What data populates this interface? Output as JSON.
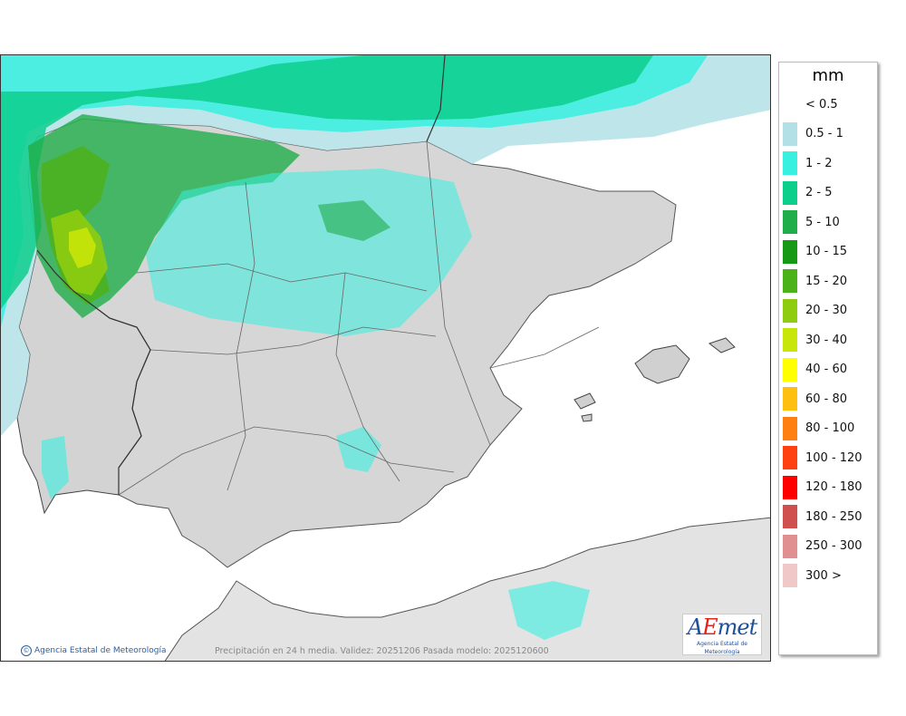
{
  "map": {
    "credit": "Agencia Estatal de Meteorología",
    "caption": "Precipitación en 24 h media. Validez: 20251206 Pasada modelo: 2025120600",
    "logo_text": "AEmet",
    "logo_sub": "Agencia Estatal de Meteorología",
    "sea_color": "#ffffff",
    "land_color": "#d9d9d9"
  },
  "legend": {
    "unit": "mm",
    "entries": [
      {
        "label": "< 0.5",
        "color": "#ffffff"
      },
      {
        "label": "0.5 - 1",
        "color": "#b3e0e6"
      },
      {
        "label": "1 - 2",
        "color": "#38f0e0"
      },
      {
        "label": "2 - 5",
        "color": "#0dcf8c"
      },
      {
        "label": "5 - 10",
        "color": "#1fae4a"
      },
      {
        "label": "10 - 15",
        "color": "#169a16"
      },
      {
        "label": "15 - 20",
        "color": "#4cb21a"
      },
      {
        "label": "20 - 30",
        "color": "#8fcc10"
      },
      {
        "label": "30 - 40",
        "color": "#c8e60a"
      },
      {
        "label": "40 - 60",
        "color": "#ffff00"
      },
      {
        "label": "60 - 80",
        "color": "#ffbf10"
      },
      {
        "label": "80 - 100",
        "color": "#ff8010"
      },
      {
        "label": "100 - 120",
        "color": "#ff4010"
      },
      {
        "label": "120 - 180",
        "color": "#ff0000"
      },
      {
        "label": "180 - 250",
        "color": "#d05050"
      },
      {
        "label": "250 - 300",
        "color": "#e09090"
      },
      {
        "label": "300 >",
        "color": "#f0c8c8"
      }
    ]
  }
}
